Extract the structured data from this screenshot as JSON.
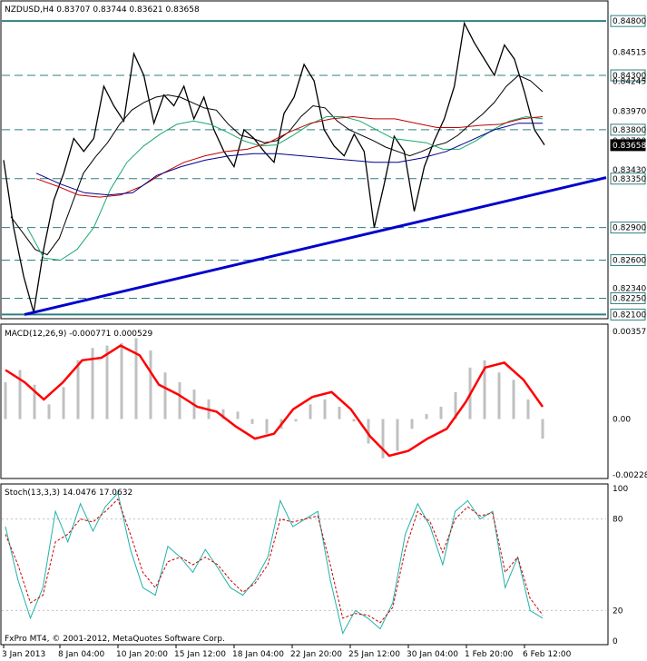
{
  "window": {
    "symbol_header": "NZDUSD,H4  0.83707 0.83744 0.83621 0.83658",
    "watermark": "FxPro MT4, © 2001-2012, MetaQuotes Software Corp.",
    "current_price": "0.83658"
  },
  "chart_data": [
    {
      "type": "line",
      "title": "NZDUSD,H4  0.83707 0.83744 0.83621 0.83658",
      "ylim": [
        0.8207,
        0.8496
      ],
      "price_scale_labels": [
        "0.84800",
        "0.84515",
        "0.84300",
        "0.84245",
        "0.83970",
        "0.83800",
        "0.83700",
        "0.83658",
        "0.83430",
        "0.83350",
        "0.82900",
        "0.82600",
        "0.82340",
        "0.82250",
        "0.82100"
      ],
      "horizontal_levels": [
        0.848,
        0.843,
        0.838,
        0.8335,
        0.829,
        0.826,
        0.8225,
        0.821
      ],
      "x_labels": [
        "3 Jan 2013",
        "8 Jan 04:00",
        "10 Jan 20:00",
        "15 Jan 12:00",
        "18 Jan 04:00",
        "22 Jan 20:00",
        "25 Jan 12:00",
        "30 Jan 04:00",
        "1 Feb 20:00",
        "6 Feb 12:00"
      ],
      "series": [
        {
          "role": "price",
          "color": "#000000",
          "values": [
            0.8352,
            0.829,
            0.8245,
            0.8212,
            0.827,
            0.8315,
            0.834,
            0.8372,
            0.836,
            0.8372,
            0.842,
            0.8402,
            0.8388,
            0.845,
            0.843,
            0.8386,
            0.8412,
            0.8402,
            0.842,
            0.839,
            0.841,
            0.838,
            0.836,
            0.8346,
            0.838,
            0.8372,
            0.836,
            0.835,
            0.8395,
            0.841,
            0.844,
            0.8425,
            0.838,
            0.8365,
            0.8356,
            0.8376,
            0.836,
            0.829,
            0.833,
            0.8374,
            0.836,
            0.8305,
            0.8346,
            0.837,
            0.839,
            0.842,
            0.8478,
            0.846,
            0.8445,
            0.843,
            0.8458,
            0.8445,
            0.8415,
            0.838,
            0.8366
          ]
        },
        {
          "role": "MA short",
          "color": "#000000",
          "values": [
            0.83,
            0.8285,
            0.827,
            0.8265,
            0.828,
            0.831,
            0.834,
            0.8355,
            0.8368,
            0.8385,
            0.8398,
            0.8405,
            0.841,
            0.8412,
            0.841,
            0.8405,
            0.84,
            0.8398,
            0.8385,
            0.8375,
            0.8372,
            0.8368,
            0.837,
            0.8378,
            0.8392,
            0.8402,
            0.84,
            0.8388,
            0.838,
            0.8375,
            0.837,
            0.8364,
            0.836,
            0.8356,
            0.836,
            0.8365,
            0.8368,
            0.8375,
            0.8385,
            0.8394,
            0.8405,
            0.842,
            0.843,
            0.8425,
            0.8415
          ]
        },
        {
          "role": "MA medium",
          "color": "#1aa870",
          "values": [
            0.829,
            0.8262,
            0.826,
            0.827,
            0.829,
            0.8325,
            0.835,
            0.8365,
            0.8376,
            0.8385,
            0.8388,
            0.8385,
            0.8378,
            0.837,
            0.8365,
            0.8366,
            0.8375,
            0.8385,
            0.8392,
            0.8392,
            0.8388,
            0.838,
            0.8372,
            0.837,
            0.8368,
            0.8362,
            0.8362,
            0.837,
            0.838,
            0.8388,
            0.8392,
            0.839
          ]
        },
        {
          "role": "MA long",
          "color": "#c00000",
          "values": [
            0.8335,
            0.8328,
            0.832,
            0.8318,
            0.832,
            0.8328,
            0.834,
            0.835,
            0.8356,
            0.836,
            0.8362,
            0.8368,
            0.8378,
            0.8386,
            0.839,
            0.8392,
            0.839,
            0.839,
            0.8386,
            0.8382,
            0.8382,
            0.8384,
            0.8385,
            0.839,
            0.8392
          ]
        },
        {
          "role": "MA 200",
          "color": "#00008b",
          "values": [
            0.834,
            0.833,
            0.8322,
            0.832,
            0.8322,
            0.8338,
            0.8346,
            0.8352,
            0.8356,
            0.8358,
            0.8358,
            0.8356,
            0.8354,
            0.8352,
            0.835,
            0.835,
            0.8354,
            0.836,
            0.837,
            0.838,
            0.8386,
            0.8386
          ]
        },
        {
          "role": "trendline",
          "color": "#0000cc",
          "values": [
            0.821,
            0.8336
          ]
        }
      ]
    },
    {
      "type": "line",
      "title": "MACD(12,26,9) -0.000771 0.000529",
      "ylim": [
        -0.00228,
        0.003577
      ],
      "y_tick_labels": [
        "0.003577",
        "0.00",
        "-0.00228"
      ],
      "series": [
        {
          "role": "histogram",
          "color": "#c0c0c0",
          "values": [
            0.0015,
            0.002,
            0.0014,
            0.0006,
            0.0013,
            0.0024,
            0.0029,
            0.003,
            0.0031,
            0.0033,
            0.0028,
            0.0019,
            0.0015,
            0.0012,
            0.0008,
            0.0004,
            0.0003,
            -0.0002,
            -0.0006,
            -0.0004,
            -0.0001,
            0.0006,
            0.0008,
            0.0005,
            -0.0001,
            -0.001,
            -0.0016,
            -0.0013,
            -0.0004,
            0.0002,
            0.0005,
            0.0011,
            0.0021,
            0.0024,
            0.0019,
            0.0016,
            0.0008,
            -0.0008
          ]
        },
        {
          "role": "signal",
          "color": "#ff0000",
          "values": [
            0.002,
            0.0015,
            0.0008,
            0.0015,
            0.0024,
            0.0025,
            0.003,
            0.0026,
            0.0014,
            0.001,
            0.0005,
            0.0003,
            -0.0003,
            -0.0008,
            -0.0006,
            0.0004,
            0.0009,
            0.0011,
            0.0004,
            -0.0007,
            -0.0015,
            -0.0013,
            -0.0008,
            -0.0004,
            0.0007,
            0.0021,
            0.0023,
            0.0016,
            0.0005
          ]
        }
      ]
    },
    {
      "type": "line",
      "title": "Stoch(13,3,3) 14.0476 17.0632",
      "ylim": [
        0,
        100
      ],
      "y_tick_labels": [
        "100",
        "80",
        "20",
        "0"
      ],
      "series": [
        {
          "role": "%K",
          "color": "#20b2aa",
          "values": [
            75,
            40,
            15,
            35,
            85,
            65,
            90,
            72,
            88,
            97,
            60,
            35,
            30,
            62,
            55,
            45,
            60,
            48,
            35,
            30,
            40,
            55,
            92,
            75,
            80,
            85,
            40,
            5,
            20,
            15,
            8,
            25,
            70,
            90,
            75,
            50,
            85,
            92,
            80,
            85,
            35,
            55,
            20,
            15
          ]
        },
        {
          "role": "%D",
          "color": "#cc0000",
          "values": [
            70,
            50,
            25,
            30,
            65,
            70,
            80,
            78,
            85,
            93,
            70,
            45,
            35,
            52,
            55,
            50,
            55,
            50,
            40,
            32,
            38,
            50,
            80,
            78,
            80,
            82,
            50,
            15,
            18,
            17,
            12,
            22,
            60,
            85,
            78,
            58,
            80,
            88,
            82,
            84,
            45,
            55,
            28,
            17
          ]
        }
      ]
    }
  ]
}
